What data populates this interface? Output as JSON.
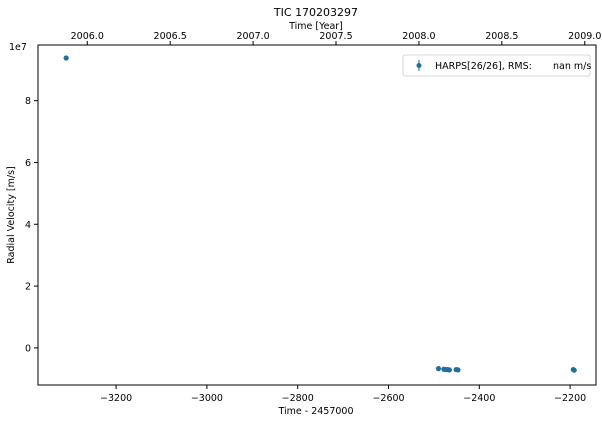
{
  "chart_data": {
    "type": "scatter",
    "title": "TIC 170203297",
    "xlabel": "Time - 2457000",
    "ylabel": "Radial Velocity [m/s]",
    "top_xlabel": "Time [Year]",
    "y_offset_label": "1e7",
    "xlim": [
      -3372,
      -2143
    ],
    "ylim": [
      -1.2,
      9.8
    ],
    "y_unit_multiplier": 10000000,
    "x_ticks": [
      -3200,
      -3000,
      -2800,
      -2600,
      -2400,
      -2200
    ],
    "x_tick_labels": [
      "−3200",
      "−3000",
      "−2800",
      "−2600",
      "−2400",
      "−2200"
    ],
    "y_ticks": [
      0,
      2,
      4,
      6,
      8
    ],
    "y_tick_labels": [
      "0",
      "2",
      "4",
      "6",
      "8"
    ],
    "top_x_ticks": [
      2006.0,
      2006.5,
      2007.0,
      2007.5,
      2008.0,
      2008.5,
      2009.0
    ],
    "top_x_tick_labels": [
      "2006.0",
      "2006.5",
      "2007.0",
      "2007.5",
      "2008.0",
      "2008.5",
      "2009.0"
    ],
    "grid": false,
    "legend_position": "top-right",
    "series": [
      {
        "name": "HARPS[26/26], RMS:       nan m/s",
        "color": "#1f6f99",
        "points": [
          {
            "x": -3310,
            "y": 9.38
          },
          {
            "x": -2490,
            "y": -0.67
          },
          {
            "x": -2478,
            "y": -0.69
          },
          {
            "x": -2474,
            "y": -0.7
          },
          {
            "x": -2470,
            "y": -0.7
          },
          {
            "x": -2466,
            "y": -0.71
          },
          {
            "x": -2451,
            "y": -0.7
          },
          {
            "x": -2447,
            "y": -0.71
          },
          {
            "x": -2193,
            "y": -0.7
          },
          {
            "x": -2191,
            "y": -0.72
          }
        ]
      }
    ]
  }
}
